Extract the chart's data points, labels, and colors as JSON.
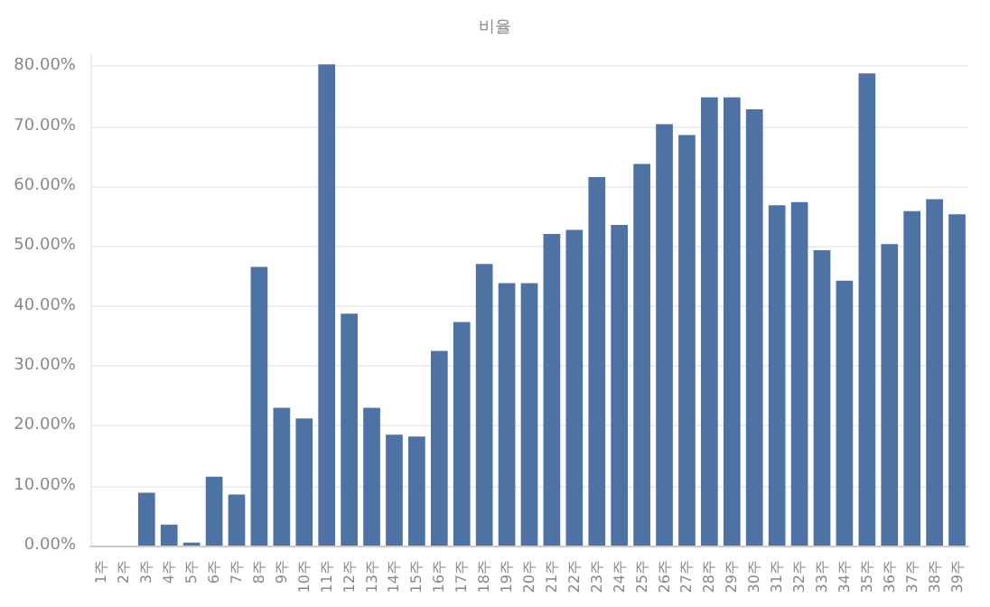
{
  "chart_data": {
    "type": "bar",
    "title": "비율",
    "categories": [
      "1주",
      "2주",
      "3주",
      "4주",
      "5주",
      "6주",
      "7주",
      "8주",
      "9주",
      "10주",
      "11주",
      "12주",
      "13주",
      "14주",
      "15주",
      "16주",
      "17주",
      "18주",
      "19주",
      "20주",
      "21주",
      "22주",
      "23주",
      "24주",
      "25주",
      "26주",
      "27주",
      "28주",
      "29주",
      "30주",
      "31주",
      "32주",
      "33주",
      "34주",
      "35주",
      "36주",
      "37주",
      "38주",
      "39주"
    ],
    "values": [
      0,
      0,
      8.8,
      3.5,
      0.5,
      11.5,
      8.5,
      46.5,
      23,
      21.2,
      80.3,
      38.7,
      23,
      18.5,
      18.2,
      32.5,
      37.3,
      47,
      43.8,
      43.8,
      52,
      52.7,
      61.5,
      53.5,
      63.7,
      70.3,
      68.5,
      74.8,
      74.8,
      72.8,
      56.8,
      57.3,
      49.3,
      44.2,
      78.8,
      50.3,
      55.8,
      57.8,
      55.3
    ],
    "color": "#4e72a3",
    "ylim": [
      0,
      82
    ],
    "yticks": [
      {
        "value": 0,
        "label": "0.00%"
      },
      {
        "value": 10,
        "label": "10.00%"
      },
      {
        "value": 20,
        "label": "20.00%"
      },
      {
        "value": 30,
        "label": "30.00%"
      },
      {
        "value": 40,
        "label": "40.00%"
      },
      {
        "value": 50,
        "label": "50.00%"
      },
      {
        "value": 60,
        "label": "60.00%"
      },
      {
        "value": 70,
        "label": "70.00%"
      },
      {
        "value": 80,
        "label": "80.00%"
      }
    ],
    "grid": "y"
  }
}
